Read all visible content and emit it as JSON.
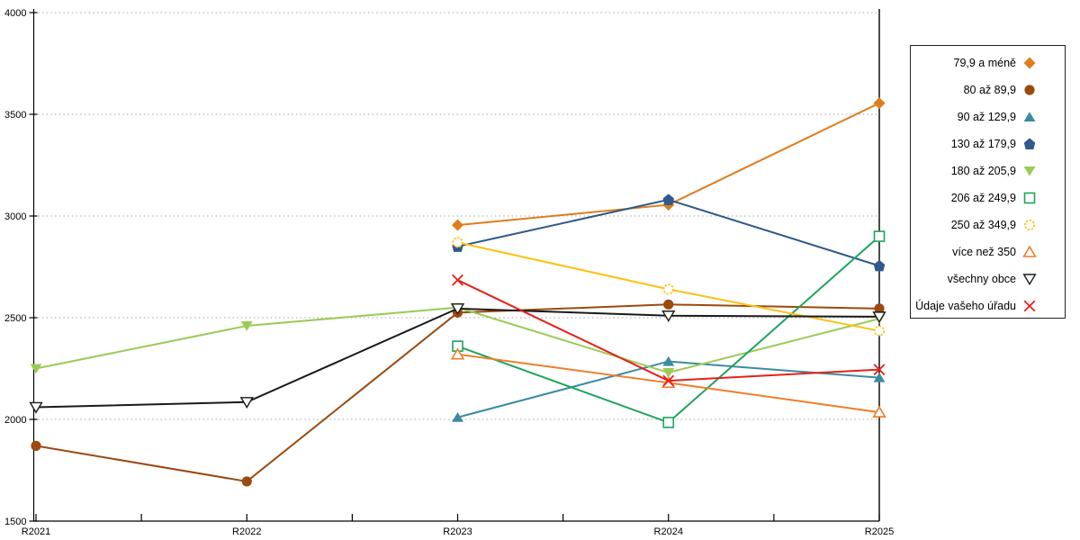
{
  "chart_data": {
    "type": "line",
    "title": "",
    "xlabel": "",
    "ylabel": "",
    "categories": [
      "R2021",
      "R2022",
      "R2023",
      "R2024",
      "R2025"
    ],
    "ylim": [
      1500,
      4000
    ],
    "yticks": [
      1500,
      2000,
      2500,
      3000,
      3500,
      4000
    ],
    "grid": "horizontal-dotted",
    "legend_position": "right-outside",
    "series": [
      {
        "name": "79,9 a méně",
        "color": "#DE7D1B",
        "marker": "diamond",
        "fill": "filled",
        "values": [
          null,
          null,
          2955,
          3055,
          3555
        ]
      },
      {
        "name": "80 až 89,9",
        "color": "#9B4A10",
        "marker": "circle",
        "fill": "filled",
        "values": [
          1870,
          1695,
          2525,
          2565,
          2545
        ]
      },
      {
        "name": "90 až 129,9",
        "color": "#3B8BA0",
        "marker": "triangle-up",
        "fill": "filled",
        "values": [
          null,
          null,
          2010,
          2285,
          2205
        ]
      },
      {
        "name": "130 až 179,9",
        "color": "#2F5A8B",
        "marker": "pentagon",
        "fill": "filled",
        "values": [
          null,
          null,
          2850,
          3080,
          2755
        ]
      },
      {
        "name": "180 až 205,9",
        "color": "#9BCB56",
        "marker": "triangle-down",
        "fill": "filled",
        "values": [
          2250,
          2460,
          2550,
          2230,
          2495
        ]
      },
      {
        "name": "206 až 249,9",
        "color": "#1DA45C",
        "marker": "square",
        "fill": "hollow",
        "values": [
          null,
          null,
          2360,
          1985,
          2900
        ]
      },
      {
        "name": "250 až 349,9",
        "color": "#FEC110",
        "marker": "circle-dashed",
        "fill": "hollow",
        "values": [
          null,
          null,
          2870,
          2640,
          2435
        ]
      },
      {
        "name": "více než 350",
        "color": "#EF7D28",
        "marker": "triangle-up",
        "fill": "hollow",
        "values": [
          null,
          null,
          2320,
          2180,
          2035
        ]
      },
      {
        "name": "všechny obce",
        "color": "#1A1A1A",
        "marker": "triangle-down",
        "fill": "hollow",
        "values": [
          2060,
          2085,
          2545,
          2510,
          2505
        ]
      },
      {
        "name": "Údaje vašeho úřadu",
        "color": "#E32219",
        "marker": "x",
        "fill": "hollow",
        "values": [
          null,
          null,
          2685,
          2190,
          2245
        ]
      }
    ]
  },
  "axis_colors": {
    "axis": "#000000",
    "grid": "#b8b8b8"
  }
}
